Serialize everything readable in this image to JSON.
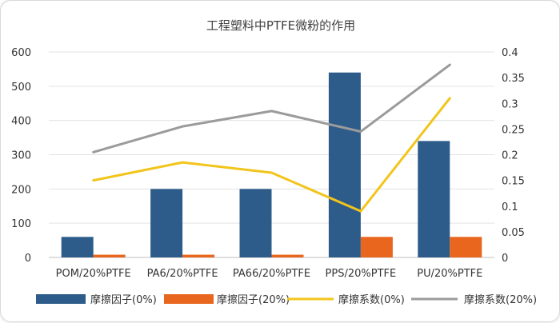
{
  "chart_data": {
    "type": "bar",
    "title": "工程塑料中PTFE微粉的作用",
    "categories": [
      "POM/20%PTFE",
      "PA6/20%PTFE",
      "PA66/20%PTFE",
      "PPS/20%PTFE",
      "PU/20%PTFE"
    ],
    "series": [
      {
        "name": "摩擦因子(0%)",
        "type": "bar",
        "axis": "left",
        "color": "#2e5c8a",
        "values": [
          60,
          200,
          200,
          540,
          340
        ]
      },
      {
        "name": "摩擦因子(20%)",
        "type": "bar",
        "axis": "left",
        "color": "#e8661e",
        "values": [
          8,
          8,
          8,
          60,
          60
        ]
      },
      {
        "name": "摩擦系数(0%)",
        "type": "line",
        "axis": "right",
        "color": "#f2c51c",
        "values": [
          0.15,
          0.185,
          0.165,
          0.09,
          0.31
        ]
      },
      {
        "name": "摩擦系数(20%)",
        "type": "line",
        "axis": "right",
        "color": "#9b9b9b",
        "values": [
          0.205,
          0.255,
          0.285,
          0.245,
          0.375
        ]
      }
    ],
    "y_left": {
      "min": 0,
      "max": 600,
      "ticks": [
        "0",
        "100",
        "200",
        "300",
        "400",
        "500",
        "600"
      ]
    },
    "y_right": {
      "min": 0,
      "max": 0.4,
      "ticks": [
        "0",
        "0.05",
        "0.1",
        "0.15",
        "0.2",
        "0.25",
        "0.3",
        "0.35",
        "0.4"
      ]
    },
    "grid": true,
    "legend_position": "bottom"
  }
}
